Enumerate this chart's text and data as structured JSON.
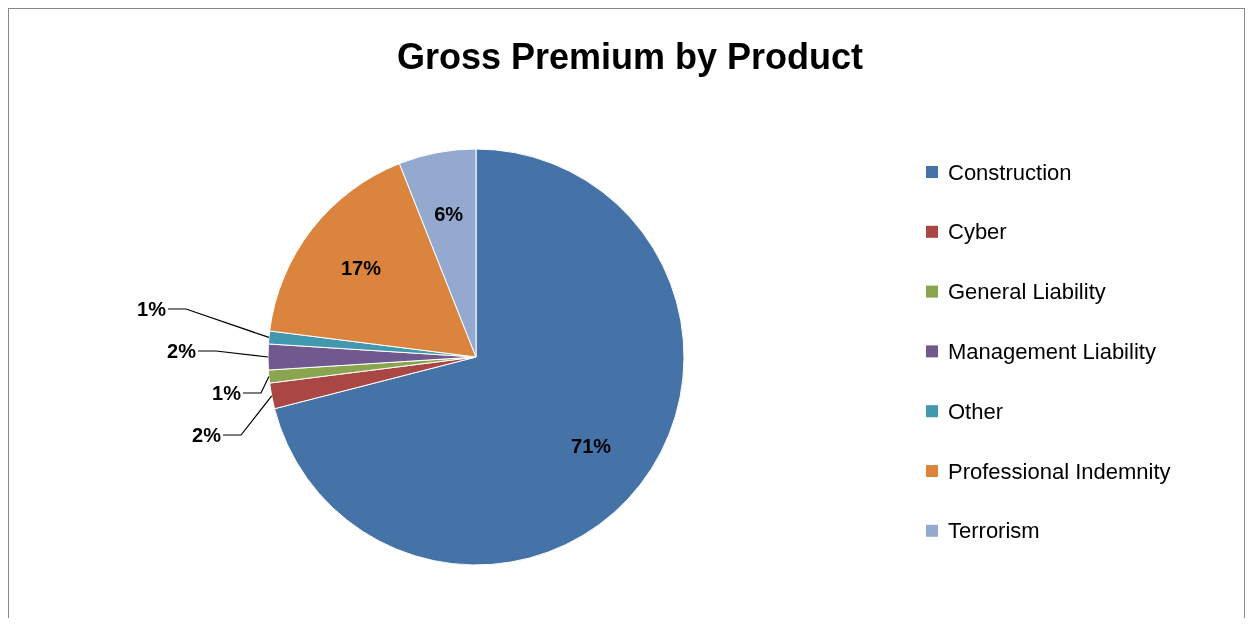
{
  "chart_data": {
    "type": "pie",
    "title": "Gross Premium by Product",
    "categories": [
      "Construction",
      "Cyber",
      "General Liability",
      "Management Liability",
      "Other",
      "Professional Indemnity",
      "Terrorism"
    ],
    "values": [
      71,
      2,
      1,
      2,
      1,
      17,
      6
    ],
    "value_labels": [
      "71%",
      "2%",
      "1%",
      "2%",
      "1%",
      "17%",
      "6%"
    ],
    "colors": [
      "#4572a7",
      "#aa4643",
      "#89a54e",
      "#71588f",
      "#4198af",
      "#db843d",
      "#93a9cf"
    ],
    "legend": "right"
  }
}
